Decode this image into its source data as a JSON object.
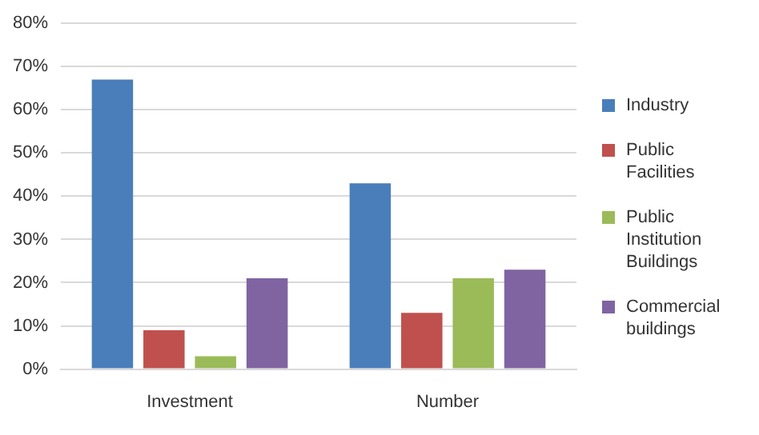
{
  "chart_data": {
    "type": "bar",
    "categories": [
      "Investment",
      "Number"
    ],
    "series": [
      {
        "name": "Industry",
        "color": "#4a7ebb",
        "values": [
          67,
          43
        ]
      },
      {
        "name": "Public Facilities",
        "color": "#c0504d",
        "values": [
          9,
          13
        ]
      },
      {
        "name": "Public Institution Buildings",
        "color": "#9bbb59",
        "values": [
          3,
          21
        ]
      },
      {
        "name": "Commercial buildings",
        "color": "#8064a2",
        "values": [
          21,
          23
        ]
      }
    ],
    "ylim": [
      0,
      80
    ],
    "yticks": [
      {
        "value": 0,
        "label": "0%"
      },
      {
        "value": 10,
        "label": "10%"
      },
      {
        "value": 20,
        "label": "20%"
      },
      {
        "value": 30,
        "label": "30%"
      },
      {
        "value": 40,
        "label": "40%"
      },
      {
        "value": 50,
        "label": "50%"
      },
      {
        "value": 60,
        "label": "60%"
      },
      {
        "value": 70,
        "label": "70%"
      },
      {
        "value": 80,
        "label": "80%"
      }
    ],
    "grid": "y",
    "legend": "right"
  }
}
